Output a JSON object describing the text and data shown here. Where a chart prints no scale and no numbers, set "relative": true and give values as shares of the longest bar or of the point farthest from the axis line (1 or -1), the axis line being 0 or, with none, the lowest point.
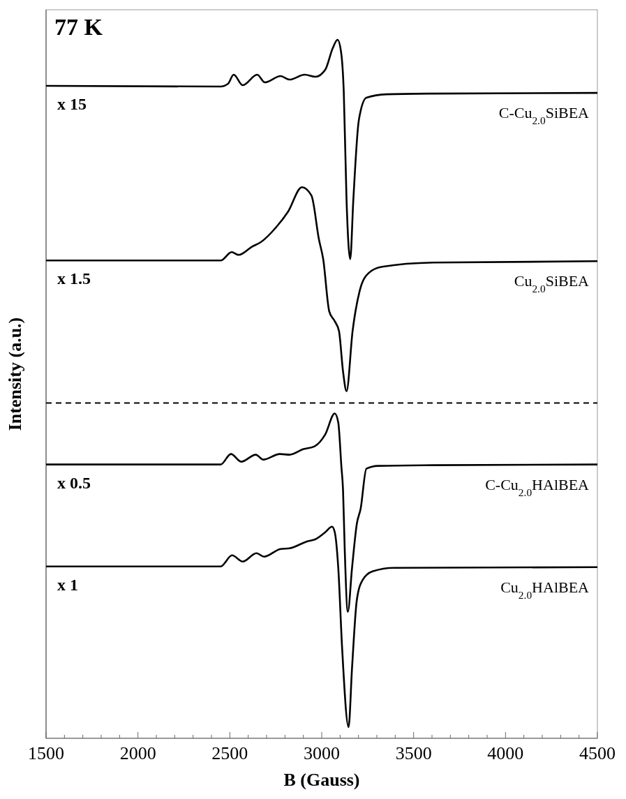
{
  "chart_data": {
    "type": "line",
    "relative": true,
    "xlabel": "B (Gauss)",
    "ylabel": "Intensity (a.u.)",
    "xlim": [
      1500,
      4500
    ],
    "xticks": [
      1500,
      {
        "value": 1600,
        "label": null
      },
      {
        "value": 1700,
        "label": null
      },
      {
        "value": 1800,
        "label": null
      },
      {
        "value": 1900,
        "label": null
      },
      2000,
      {
        "value": 2100,
        "label": null
      },
      {
        "value": 2200,
        "label": null
      },
      {
        "value": 2300,
        "label": null
      },
      {
        "value": 2400,
        "label": null
      },
      2500,
      {
        "value": 2600,
        "label": null
      },
      {
        "value": 2700,
        "label": null
      },
      {
        "value": 2800,
        "label": null
      },
      {
        "value": 2900,
        "label": null
      },
      3000,
      {
        "value": 3100,
        "label": null
      },
      {
        "value": 3200,
        "label": null
      },
      {
        "value": 3300,
        "label": null
      },
      {
        "value": 3400,
        "label": null
      },
      3500,
      {
        "value": 3600,
        "label": null
      },
      {
        "value": 3700,
        "label": null
      },
      {
        "value": 3800,
        "label": null
      },
      {
        "value": 3900,
        "label": null
      },
      4000,
      {
        "value": 4100,
        "label": null
      },
      {
        "value": 4200,
        "label": null
      },
      {
        "value": 4300,
        "label": null
      },
      {
        "value": 4400,
        "label": null
      },
      4500
    ],
    "tick_labels": "x",
    "line_style": "solid",
    "grid": false,
    "annotations": [
      "77 K",
      "x 15",
      "x 1.5",
      "x 0.5",
      "x 1"
    ],
    "ref_lines": [
      {
        "axis": "y",
        "value": 0.48,
        "line_style": "dashed",
        "color": "#000000"
      }
    ],
    "series": [
      {
        "name": "C-Cu$_{2.0}$SiBEA",
        "color": "#000000",
        "x": [
          1500,
          2450,
          2490,
          2521,
          2570,
          2649,
          2690,
          2776,
          2825,
          2907,
          2966,
          3019,
          3060,
          3086,
          3105,
          3120,
          3135,
          3155,
          3172,
          3202,
          3243,
          3352,
          3606,
          4500
        ],
        "values": [
          0.934,
          0.933,
          0.937,
          0.95,
          0.935,
          0.95,
          0.939,
          0.948,
          0.943,
          0.95,
          0.947,
          0.957,
          0.988,
          1.0,
          0.983,
          0.925,
          0.771,
          0.686,
          0.771,
          0.885,
          0.917,
          0.922,
          0.923,
          0.924
        ]
      },
      {
        "name": "Cu$_{2.0}$SiBEA",
        "color": "#000000",
        "x": [
          1500,
          2450,
          2510,
          2548,
          2622,
          2667,
          2750,
          2817,
          2892,
          2944,
          2985,
          3008,
          3041,
          3071,
          3094,
          3116,
          3135,
          3168,
          3206,
          3255,
          3329,
          3606,
          4500
        ],
        "values": [
          0.684,
          0.684,
          0.696,
          0.692,
          0.704,
          0.71,
          0.731,
          0.754,
          0.789,
          0.777,
          0.714,
          0.686,
          0.611,
          0.597,
          0.583,
          0.525,
          0.497,
          0.583,
          0.64,
          0.666,
          0.675,
          0.681,
          0.683
        ]
      },
      {
        "name": "C-Cu$_{2.0}$HAlBEA",
        "color": "#000000",
        "x": [
          1500,
          2450,
          2506,
          2562,
          2641,
          2682,
          2772,
          2825,
          2901,
          2961,
          3019,
          3071,
          3090,
          3107,
          3116,
          3125,
          3142,
          3165,
          3191,
          3212,
          3243,
          3307,
          3606,
          4500
        ],
        "values": [
          0.392,
          0.392,
          0.407,
          0.396,
          0.406,
          0.399,
          0.407,
          0.406,
          0.414,
          0.418,
          0.435,
          0.465,
          0.452,
          0.389,
          0.355,
          0.272,
          0.181,
          0.244,
          0.307,
          0.329,
          0.386,
          0.39,
          0.391,
          0.392
        ]
      },
      {
        "name": "Cu$_{2.0}$HAlBEA",
        "color": "#000000",
        "x": [
          1500,
          2450,
          2512,
          2570,
          2645,
          2686,
          2776,
          2825,
          2922,
          2966,
          3019,
          3056,
          3071,
          3090,
          3111,
          3146,
          3165,
          3191,
          3221,
          3277,
          3393,
          4500
        ],
        "values": [
          0.246,
          0.246,
          0.262,
          0.253,
          0.265,
          0.26,
          0.271,
          0.272,
          0.282,
          0.285,
          0.295,
          0.303,
          0.295,
          0.244,
          0.129,
          0.016,
          0.101,
          0.198,
          0.226,
          0.239,
          0.244,
          0.245
        ]
      }
    ]
  }
}
